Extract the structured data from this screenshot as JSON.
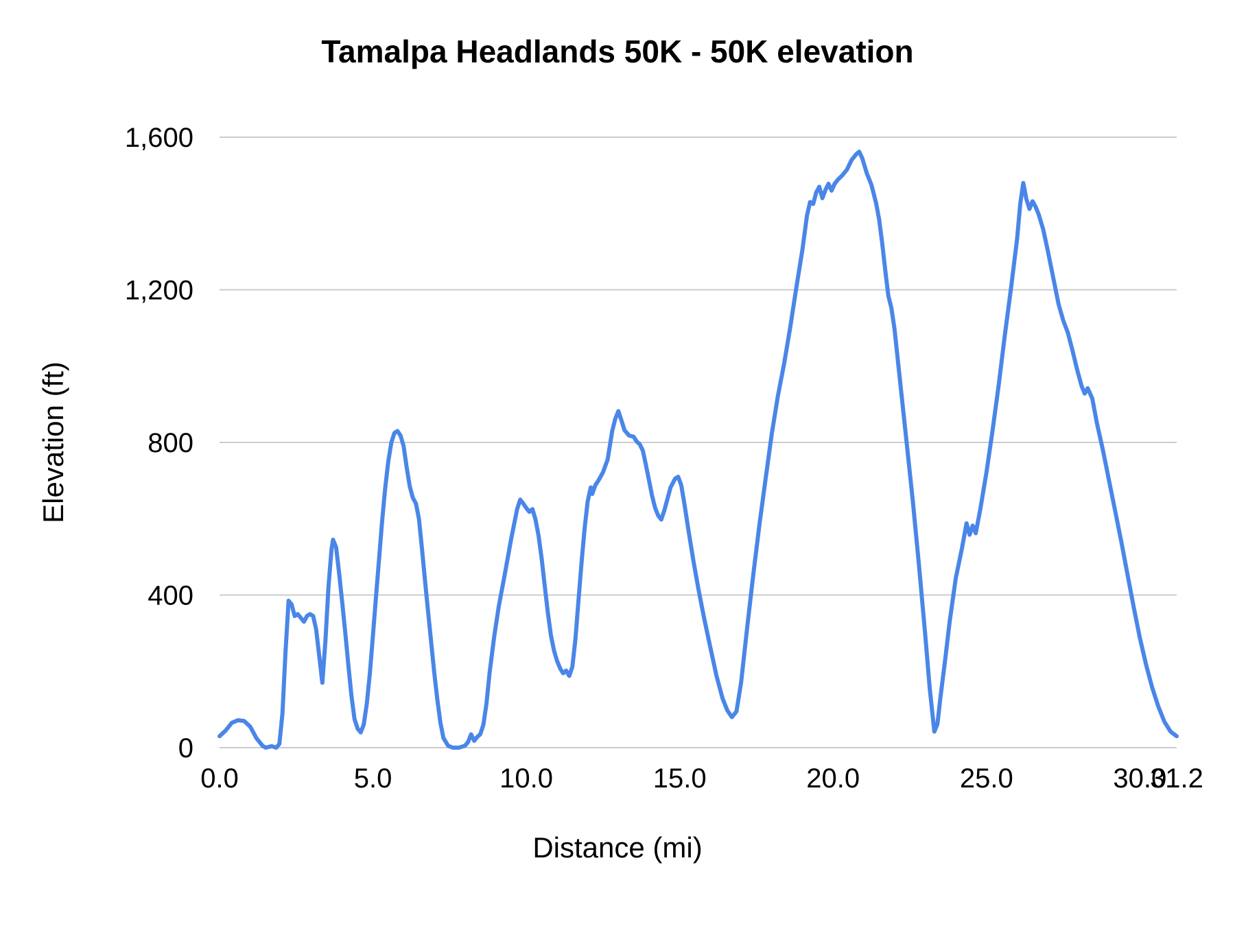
{
  "chart": {
    "title": "Tamalpa Headlands 50K - 50K elevation",
    "xlabel": "Distance (mi)",
    "ylabel": "Elevation (ft)"
  },
  "chart_data": {
    "type": "line",
    "title": "Tamalpa Headlands 50K - 50K elevation",
    "xlabel": "Distance (mi)",
    "ylabel": "Elevation (ft)",
    "xlim": [
      0,
      31.2
    ],
    "ylim": [
      0,
      1600
    ],
    "x_ticks": [
      0.0,
      5.0,
      10.0,
      15.0,
      20.0,
      25.0,
      30.0,
      31.2
    ],
    "x_tick_labels": [
      "0.0",
      "5.0",
      "10.0",
      "15.0",
      "20.0",
      "25.0",
      "30.0",
      "31.2"
    ],
    "y_ticks": [
      0,
      400,
      800,
      1200,
      1600
    ],
    "y_tick_labels": [
      "0",
      "400",
      "800",
      "1,200",
      "1,600"
    ],
    "grid": "horizontal",
    "legend": "none",
    "line_color": "#4a86e8",
    "grid_color": "#cccccc",
    "text_color": "#000000",
    "series": [
      {
        "name": "50K elevation",
        "points": [
          [
            0,
            30
          ],
          [
            0.2,
            45
          ],
          [
            0.4,
            65
          ],
          [
            0.6,
            72
          ],
          [
            0.8,
            70
          ],
          [
            1.0,
            55
          ],
          [
            1.2,
            25
          ],
          [
            1.4,
            5
          ],
          [
            1.5,
            0
          ],
          [
            1.7,
            4
          ],
          [
            1.85,
            0
          ],
          [
            1.95,
            10
          ],
          [
            2.05,
            90
          ],
          [
            2.15,
            250
          ],
          [
            2.25,
            385
          ],
          [
            2.35,
            375
          ],
          [
            2.45,
            345
          ],
          [
            2.55,
            350
          ],
          [
            2.65,
            340
          ],
          [
            2.75,
            330
          ],
          [
            2.85,
            345
          ],
          [
            2.95,
            350
          ],
          [
            3.05,
            345
          ],
          [
            3.15,
            310
          ],
          [
            3.25,
            240
          ],
          [
            3.35,
            170
          ],
          [
            3.45,
            280
          ],
          [
            3.55,
            420
          ],
          [
            3.65,
            520
          ],
          [
            3.7,
            545
          ],
          [
            3.8,
            525
          ],
          [
            3.9,
            455
          ],
          [
            4.0,
            380
          ],
          [
            4.1,
            300
          ],
          [
            4.2,
            215
          ],
          [
            4.3,
            135
          ],
          [
            4.4,
            75
          ],
          [
            4.5,
            50
          ],
          [
            4.6,
            40
          ],
          [
            4.7,
            60
          ],
          [
            4.8,
            115
          ],
          [
            4.9,
            195
          ],
          [
            5.0,
            295
          ],
          [
            5.1,
            395
          ],
          [
            5.2,
            495
          ],
          [
            5.3,
            595
          ],
          [
            5.4,
            680
          ],
          [
            5.5,
            750
          ],
          [
            5.6,
            800
          ],
          [
            5.7,
            825
          ],
          [
            5.8,
            830
          ],
          [
            5.9,
            818
          ],
          [
            6.0,
            790
          ],
          [
            6.1,
            735
          ],
          [
            6.2,
            685
          ],
          [
            6.3,
            655
          ],
          [
            6.4,
            640
          ],
          [
            6.5,
            600
          ],
          [
            6.6,
            520
          ],
          [
            6.7,
            435
          ],
          [
            6.8,
            355
          ],
          [
            6.9,
            275
          ],
          [
            7.0,
            195
          ],
          [
            7.1,
            125
          ],
          [
            7.2,
            65
          ],
          [
            7.3,
            25
          ],
          [
            7.45,
            5
          ],
          [
            7.6,
            0
          ],
          [
            7.8,
            0
          ],
          [
            8.0,
            5
          ],
          [
            8.1,
            15
          ],
          [
            8.2,
            35
          ],
          [
            8.3,
            18
          ],
          [
            8.4,
            28
          ],
          [
            8.5,
            35
          ],
          [
            8.6,
            60
          ],
          [
            8.7,
            115
          ],
          [
            8.8,
            195
          ],
          [
            8.95,
            290
          ],
          [
            9.1,
            370
          ],
          [
            9.3,
            455
          ],
          [
            9.5,
            545
          ],
          [
            9.7,
            625
          ],
          [
            9.8,
            650
          ],
          [
            9.9,
            640
          ],
          [
            10.0,
            628
          ],
          [
            10.1,
            618
          ],
          [
            10.2,
            625
          ],
          [
            10.3,
            598
          ],
          [
            10.4,
            555
          ],
          [
            10.5,
            495
          ],
          [
            10.6,
            425
          ],
          [
            10.7,
            355
          ],
          [
            10.8,
            295
          ],
          [
            10.9,
            255
          ],
          [
            11.0,
            228
          ],
          [
            11.1,
            208
          ],
          [
            11.2,
            195
          ],
          [
            11.3,
            202
          ],
          [
            11.4,
            188
          ],
          [
            11.5,
            212
          ],
          [
            11.6,
            285
          ],
          [
            11.7,
            385
          ],
          [
            11.8,
            485
          ],
          [
            11.9,
            575
          ],
          [
            12.0,
            645
          ],
          [
            12.1,
            682
          ],
          [
            12.15,
            665
          ],
          [
            12.25,
            688
          ],
          [
            12.35,
            700
          ],
          [
            12.5,
            722
          ],
          [
            12.65,
            755
          ],
          [
            12.8,
            830
          ],
          [
            12.9,
            862
          ],
          [
            13.0,
            882
          ],
          [
            13.1,
            858
          ],
          [
            13.2,
            832
          ],
          [
            13.35,
            818
          ],
          [
            13.5,
            815
          ],
          [
            13.6,
            802
          ],
          [
            13.7,
            795
          ],
          [
            13.8,
            778
          ],
          [
            13.9,
            740
          ],
          [
            14.0,
            700
          ],
          [
            14.1,
            660
          ],
          [
            14.2,
            628
          ],
          [
            14.3,
            608
          ],
          [
            14.4,
            598
          ],
          [
            14.5,
            622
          ],
          [
            14.6,
            652
          ],
          [
            14.7,
            682
          ],
          [
            14.85,
            705
          ],
          [
            14.95,
            710
          ],
          [
            15.05,
            688
          ],
          [
            15.15,
            640
          ],
          [
            15.3,
            562
          ],
          [
            15.45,
            488
          ],
          [
            15.6,
            420
          ],
          [
            15.8,
            338
          ],
          [
            16.0,
            262
          ],
          [
            16.2,
            188
          ],
          [
            16.4,
            128
          ],
          [
            16.55,
            98
          ],
          [
            16.7,
            80
          ],
          [
            16.85,
            95
          ],
          [
            17.0,
            170
          ],
          [
            17.2,
            315
          ],
          [
            17.4,
            455
          ],
          [
            17.6,
            585
          ],
          [
            17.8,
            705
          ],
          [
            18.0,
            822
          ],
          [
            18.2,
            922
          ],
          [
            18.4,
            1005
          ],
          [
            18.6,
            1100
          ],
          [
            18.8,
            1205
          ],
          [
            19.0,
            1305
          ],
          [
            19.15,
            1395
          ],
          [
            19.25,
            1430
          ],
          [
            19.35,
            1425
          ],
          [
            19.45,
            1455
          ],
          [
            19.55,
            1470
          ],
          [
            19.65,
            1440
          ],
          [
            19.75,
            1462
          ],
          [
            19.85,
            1478
          ],
          [
            19.95,
            1460
          ],
          [
            20.05,
            1478
          ],
          [
            20.15,
            1488
          ],
          [
            20.3,
            1500
          ],
          [
            20.45,
            1515
          ],
          [
            20.6,
            1540
          ],
          [
            20.75,
            1555
          ],
          [
            20.85,
            1562
          ],
          [
            20.95,
            1545
          ],
          [
            21.1,
            1505
          ],
          [
            21.25,
            1475
          ],
          [
            21.4,
            1428
          ],
          [
            21.5,
            1385
          ],
          [
            21.6,
            1322
          ],
          [
            21.7,
            1252
          ],
          [
            21.8,
            1185
          ],
          [
            21.9,
            1152
          ],
          [
            22.0,
            1098
          ],
          [
            22.2,
            948
          ],
          [
            22.4,
            798
          ],
          [
            22.6,
            645
          ],
          [
            22.8,
            478
          ],
          [
            23.0,
            298
          ],
          [
            23.15,
            155
          ],
          [
            23.3,
            42
          ],
          [
            23.4,
            62
          ],
          [
            23.5,
            132
          ],
          [
            23.65,
            228
          ],
          [
            23.8,
            330
          ],
          [
            24.0,
            445
          ],
          [
            24.2,
            522
          ],
          [
            24.35,
            588
          ],
          [
            24.45,
            558
          ],
          [
            24.55,
            582
          ],
          [
            24.65,
            562
          ],
          [
            24.8,
            625
          ],
          [
            25.0,
            722
          ],
          [
            25.2,
            832
          ],
          [
            25.4,
            952
          ],
          [
            25.6,
            1082
          ],
          [
            25.8,
            1205
          ],
          [
            26.0,
            1335
          ],
          [
            26.1,
            1425
          ],
          [
            26.2,
            1480
          ],
          [
            26.3,
            1438
          ],
          [
            26.4,
            1412
          ],
          [
            26.5,
            1432
          ],
          [
            26.6,
            1418
          ],
          [
            26.7,
            1398
          ],
          [
            26.85,
            1358
          ],
          [
            27.0,
            1302
          ],
          [
            27.2,
            1222
          ],
          [
            27.35,
            1162
          ],
          [
            27.5,
            1120
          ],
          [
            27.65,
            1088
          ],
          [
            27.8,
            1042
          ],
          [
            27.95,
            992
          ],
          [
            28.1,
            948
          ],
          [
            28.2,
            928
          ],
          [
            28.3,
            942
          ],
          [
            28.45,
            915
          ],
          [
            28.6,
            850
          ],
          [
            28.8,
            778
          ],
          [
            29.0,
            698
          ],
          [
            29.2,
            618
          ],
          [
            29.4,
            538
          ],
          [
            29.6,
            452
          ],
          [
            29.8,
            368
          ],
          [
            30.0,
            288
          ],
          [
            30.2,
            218
          ],
          [
            30.4,
            158
          ],
          [
            30.6,
            108
          ],
          [
            30.8,
            68
          ],
          [
            31.0,
            42
          ],
          [
            31.2,
            30
          ]
        ]
      }
    ]
  }
}
